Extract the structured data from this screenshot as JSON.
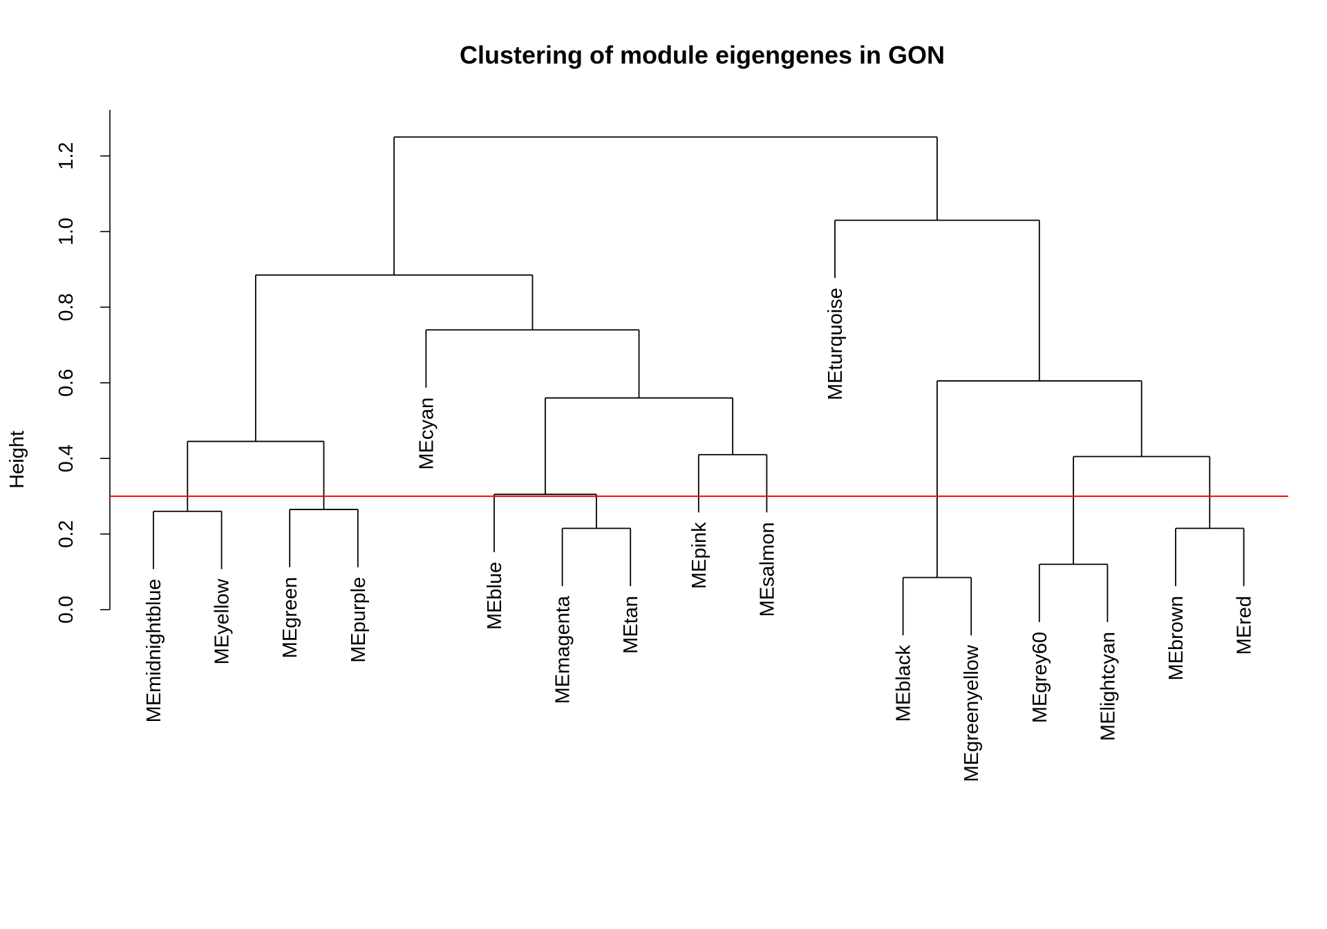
{
  "chart_data": {
    "type": "dendrogram",
    "title": "Clustering of module eigengenes in GON",
    "xlabel": "",
    "ylabel": "Height",
    "ylim": [
      0.0,
      1.32
    ],
    "yticks": [
      "0.0",
      "0.2",
      "0.4",
      "0.6",
      "0.8",
      "1.0",
      "1.2"
    ],
    "cut_height": 0.3,
    "cut_line_color": "#ff0000",
    "leaves": [
      "MEmidnightblue",
      "MEyellow",
      "MEgreen",
      "MEpurple",
      "MEcyan",
      "MEblue",
      "MEmagenta",
      "MEtan",
      "MEpink",
      "MEsalmon",
      "MEturquoise",
      "MEblack",
      "MEgreenyellow",
      "MEgrey60",
      "MElightcyan",
      "MEbrown",
      "MEred"
    ],
    "merges": [
      [
        -1,
        -2,
        0.26
      ],
      [
        -3,
        -4,
        0.265
      ],
      [
        1,
        2,
        0.445
      ],
      [
        -7,
        -8,
        0.215
      ],
      [
        -6,
        4,
        0.305
      ],
      [
        -9,
        -10,
        0.41
      ],
      [
        5,
        6,
        0.56
      ],
      [
        -5,
        7,
        0.74
      ],
      [
        3,
        8,
        0.885
      ],
      [
        -12,
        -13,
        0.085
      ],
      [
        -14,
        -15,
        0.12
      ],
      [
        -16,
        -17,
        0.215
      ],
      [
        11,
        12,
        0.405
      ],
      [
        10,
        13,
        0.605
      ],
      [
        -11,
        14,
        1.03
      ],
      [
        9,
        15,
        1.25
      ]
    ]
  }
}
